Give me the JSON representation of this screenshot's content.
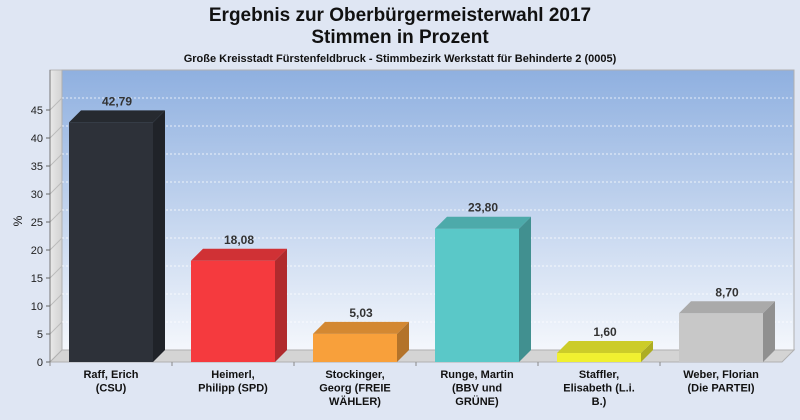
{
  "chart_data": {
    "type": "bar",
    "title_lines": [
      "Ergebnis zur Oberbürgermeisterwahl 2017",
      "Stimmen in Prozent"
    ],
    "subtitle": "Große Kreisstadt Fürstenfeldbruck - Stimmbezirk Werkstatt für Behinderte 2 (0005)",
    "ylabel": "%",
    "xlabel": "",
    "ylim": [
      0,
      50
    ],
    "yticks": [
      0,
      5,
      10,
      15,
      20,
      25,
      30,
      35,
      40,
      45
    ],
    "grid": true,
    "categories": [
      [
        "Raff, Erich",
        "(CSU)"
      ],
      [
        "Heimerl,",
        "Philipp (SPD)"
      ],
      [
        "Stockinger,",
        "Georg (FREIE",
        "WÄHLER)"
      ],
      [
        "Runge, Martin",
        "(BBV und",
        "GRÜNE)"
      ],
      [
        "Staffler,",
        "Elisabeth (L.i.",
        "B.)"
      ],
      [
        "Weber, Florian",
        "(Die PARTEI)"
      ]
    ],
    "values": [
      42.79,
      18.08,
      5.03,
      23.8,
      1.6,
      8.7
    ],
    "value_labels": [
      "42,79",
      "18,08",
      "5,03",
      "23,80",
      "1,60",
      "8,70"
    ],
    "colors": [
      "#2d3139",
      "#f53a3e",
      "#f8a03b",
      "#5ac8c8",
      "#f0f030",
      "#c8c8c8"
    ]
  }
}
